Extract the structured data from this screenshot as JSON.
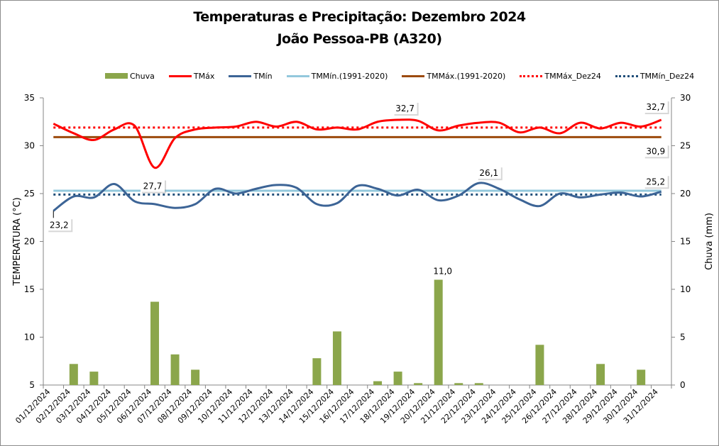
{
  "chart_data": {
    "type": "bar+line",
    "title": "Temperaturas e Precipitação: Dezembro 2024",
    "subtitle": "João Pessoa-PB (A320)",
    "ylabel": "TEMPERATURA (°C)",
    "y2label": "Chuva (mm)",
    "ylim": [
      5,
      35
    ],
    "yticks": [
      5,
      10,
      15,
      20,
      25,
      30,
      35
    ],
    "y2lim": [
      0,
      30
    ],
    "y2ticks": [
      0,
      5,
      10,
      15,
      20,
      25,
      30
    ],
    "grid": false,
    "legend_position": "top",
    "categories": [
      "01/12/2024",
      "02/12/2024",
      "03/12/2024",
      "04/12/2024",
      "05/12/2024",
      "06/12/2024",
      "07/12/2024",
      "08/12/2024",
      "09/12/2024",
      "10/12/2024",
      "11/12/2024",
      "12/12/2024",
      "13/12/2024",
      "14/12/2024",
      "15/12/2024",
      "16/12/2024",
      "17/12/2024",
      "18/12/2024",
      "19/12/2024",
      "20/12/2024",
      "21/12/2024",
      "22/12/2024",
      "23/12/2024",
      "24/12/2024",
      "25/12/2024",
      "26/12/2024",
      "27/12/2024",
      "28/12/2024",
      "29/12/2024",
      "30/12/2024",
      "31/12/2024"
    ],
    "series": [
      {
        "name": "Chuva",
        "type": "bar",
        "axis": "right",
        "color": "#8ba64b",
        "values": [
          0,
          2.2,
          1.4,
          0,
          0,
          8.7,
          3.2,
          1.6,
          0,
          0,
          0,
          0,
          0,
          2.8,
          5.6,
          0,
          0.4,
          1.4,
          0.2,
          11.0,
          0.2,
          0.2,
          0,
          0,
          4.2,
          0,
          0,
          2.2,
          0,
          1.6,
          0
        ]
      },
      {
        "name": "TMáx",
        "type": "line",
        "axis": "left",
        "color": "#ff0000",
        "style": "solid",
        "values": [
          32.3,
          31.3,
          30.6,
          31.7,
          32.1,
          27.7,
          30.8,
          31.7,
          31.9,
          32.0,
          32.5,
          32.0,
          32.5,
          31.7,
          31.9,
          31.7,
          32.5,
          32.7,
          32.6,
          31.6,
          32.1,
          32.4,
          32.4,
          31.4,
          31.9,
          31.3,
          32.4,
          31.8,
          32.4,
          32.0,
          32.7
        ]
      },
      {
        "name": "TMín",
        "type": "line",
        "axis": "left",
        "color": "#3c6496",
        "style": "solid",
        "values": [
          23.2,
          24.7,
          24.6,
          26.0,
          24.2,
          23.9,
          23.5,
          23.9,
          25.5,
          25.0,
          25.5,
          25.9,
          25.6,
          23.9,
          24.0,
          25.8,
          25.5,
          24.8,
          25.4,
          24.3,
          24.8,
          26.1,
          25.5,
          24.4,
          23.7,
          25.0,
          24.6,
          24.9,
          25.1,
          24.7,
          25.2
        ]
      },
      {
        "name": "TMMín.(1991-2020)",
        "type": "line",
        "axis": "left",
        "color": "#93c8dc",
        "style": "solid",
        "constant": 25.3
      },
      {
        "name": "TMMáx.(1991-2020)",
        "type": "line",
        "axis": "left",
        "color": "#9c4a0c",
        "style": "solid",
        "constant": 30.9
      },
      {
        "name": "TMMáx_Dez24",
        "type": "line",
        "axis": "left",
        "color": "#ff0000",
        "style": "dotted",
        "constant": 31.9
      },
      {
        "name": "TMMín_Dez24",
        "type": "line",
        "axis": "left",
        "color": "#1f4e79",
        "style": "dotted",
        "constant": 24.9
      }
    ],
    "annotations": [
      {
        "series": "TMín",
        "index": 0,
        "text": "23,2"
      },
      {
        "series": "TMáx",
        "index": 5,
        "text": "27,7"
      },
      {
        "series": "TMáx",
        "index": 17,
        "text": "32,7"
      },
      {
        "series": "Chuva",
        "index": 19,
        "text": "11,0"
      },
      {
        "series": "TMín",
        "index": 21,
        "text": "26,1"
      },
      {
        "series": "TMáx",
        "index": 30,
        "text": "32,7"
      },
      {
        "series": "TMMáx.(1991-2020)",
        "index": 30,
        "text": "30,9"
      },
      {
        "series": "TMín",
        "index": 30,
        "text": "25,2"
      }
    ]
  }
}
